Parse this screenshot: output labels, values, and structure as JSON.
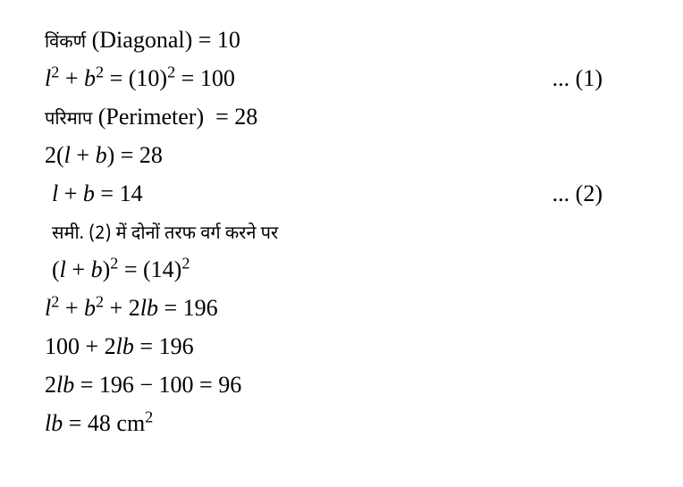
{
  "lines": {
    "l1": {
      "expr_html": "<span class=\"devanagari\">विंकर्ण</span> (Diagonal) = 10",
      "ref": ""
    },
    "l2": {
      "expr_html": "<span class=\"it\">l</span><sup>2</sup> + <span class=\"it\">b</span><sup>2</sup> = (10)<sup>2</sup> = 100",
      "ref": "... (1)"
    },
    "l3": {
      "expr_html": "<span class=\"devanagari\">परिमाप</span> (Perimeter)&nbsp; = 28",
      "ref": ""
    },
    "l4": {
      "expr_html": "2(<span class=\"it\">l</span>&nbsp;+ <span class=\"it\">b</span>) = 28",
      "ref": ""
    },
    "l5": {
      "expr_html": "<span class=\"it\">l</span> + <span class=\"it\">b</span> = 14",
      "ref": "... (2)"
    },
    "l6": {
      "expr_html": "<span class=\"devanagari\">समी. (2) में दोनों तरफ वर्ग करने पर</span>",
      "ref": ""
    },
    "l7": {
      "expr_html": "(<span class=\"it\">l</span>&nbsp;+ <span class=\"it\">b</span>)<sup>2</sup> = (14)<sup>2</sup>",
      "ref": ""
    },
    "l8": {
      "expr_html": "<span class=\"it\">l</span><sup>2</sup> + <span class=\"it\">b</span><sup>2</sup> + 2<span class=\"it\">lb</span> = 196",
      "ref": ""
    },
    "l9": {
      "expr_html": "100 + 2<span class=\"it\">lb</span> = 196",
      "ref": ""
    },
    "l10": {
      "expr_html": "2<span class=\"it\">lb</span> = 196 &minus; 100 = 96",
      "ref": ""
    },
    "l11": {
      "expr_html": "<span class=\"it\">lb</span> = 48 cm<sup>2</sup>",
      "ref": ""
    }
  },
  "order": [
    "l1",
    "l2",
    "l3",
    "l4",
    "l5",
    "l6",
    "l7",
    "l8",
    "l9",
    "l10",
    "l11"
  ],
  "indents": {
    "l5": 8,
    "l6": 8,
    "l7": 8
  }
}
